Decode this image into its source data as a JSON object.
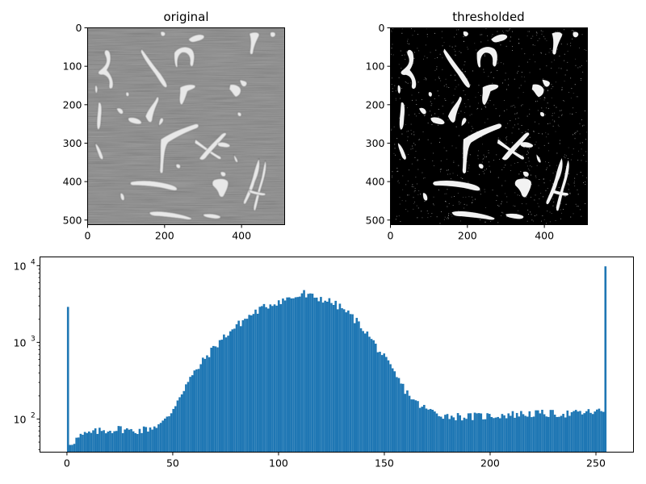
{
  "chart_data": [
    {
      "type": "heatmap",
      "title": "original",
      "x_ticks": [
        "0",
        "200",
        "400"
      ],
      "x_tick_values": [
        0,
        200,
        400
      ],
      "y_ticks": [
        "0",
        "100",
        "200",
        "300",
        "400",
        "500"
      ],
      "y_tick_values": [
        0,
        100,
        200,
        300,
        400,
        500
      ],
      "xlim": [
        0,
        512
      ],
      "ylim": [
        512,
        0
      ],
      "colormap": "gray",
      "background_color": "#7a7a7a"
    },
    {
      "type": "heatmap",
      "title": "thresholded",
      "x_ticks": [
        "0",
        "200",
        "400"
      ],
      "x_tick_values": [
        0,
        200,
        400
      ],
      "y_ticks": [
        "0",
        "100",
        "200",
        "300",
        "400",
        "500"
      ],
      "y_tick_values": [
        0,
        100,
        200,
        300,
        400,
        500
      ],
      "xlim": [
        0,
        512
      ],
      "ylim": [
        512,
        0
      ],
      "colormap": "binary",
      "background_color": "#000000"
    },
    {
      "type": "bar",
      "title": "",
      "xlabel": "",
      "ylabel": "",
      "yscale": "log",
      "xlim": [
        -12.75,
        267.75
      ],
      "ylim": [
        37,
        13000
      ],
      "x_ticks": [
        "0",
        "50",
        "100",
        "150",
        "200",
        "250"
      ],
      "x_tick_values": [
        0,
        50,
        100,
        150,
        200,
        250
      ],
      "y_ticks": [
        {
          "base": "10",
          "exp": "2",
          "value": 100
        },
        {
          "base": "10",
          "exp": "3",
          "value": 1000
        },
        {
          "base": "10",
          "exp": "4",
          "value": 10000
        }
      ],
      "bar_color": "#1f77b4",
      "bins": 256,
      "spikes": [
        {
          "x": 0,
          "value": 2900
        },
        {
          "x": 112,
          "value": 4800
        },
        {
          "x": 255,
          "value": 9800
        }
      ],
      "profile": [
        [
          0,
          47
        ],
        [
          3,
          52
        ],
        [
          6,
          60
        ],
        [
          10,
          65
        ],
        [
          15,
          70
        ],
        [
          20,
          72
        ],
        [
          25,
          75
        ],
        [
          30,
          70
        ],
        [
          35,
          72
        ],
        [
          40,
          78
        ],
        [
          45,
          90
        ],
        [
          48,
          110
        ],
        [
          50,
          140
        ],
        [
          53,
          200
        ],
        [
          56,
          280
        ],
        [
          60,
          400
        ],
        [
          65,
          620
        ],
        [
          70,
          900
        ],
        [
          75,
          1250
        ],
        [
          80,
          1650
        ],
        [
          85,
          2100
        ],
        [
          90,
          2600
        ],
        [
          95,
          3050
        ],
        [
          100,
          3450
        ],
        [
          105,
          3750
        ],
        [
          110,
          4000
        ],
        [
          115,
          4000
        ],
        [
          120,
          3750
        ],
        [
          125,
          3350
        ],
        [
          130,
          2800
        ],
        [
          135,
          2150
        ],
        [
          140,
          1550
        ],
        [
          145,
          1000
        ],
        [
          150,
          640
        ],
        [
          155,
          390
        ],
        [
          160,
          240
        ],
        [
          165,
          165
        ],
        [
          170,
          135
        ],
        [
          175,
          120
        ],
        [
          180,
          110
        ],
        [
          190,
          108
        ],
        [
          200,
          110
        ],
        [
          210,
          115
        ],
        [
          220,
          118
        ],
        [
          230,
          118
        ],
        [
          240,
          118
        ],
        [
          250,
          125
        ],
        [
          254,
          125
        ]
      ]
    }
  ]
}
